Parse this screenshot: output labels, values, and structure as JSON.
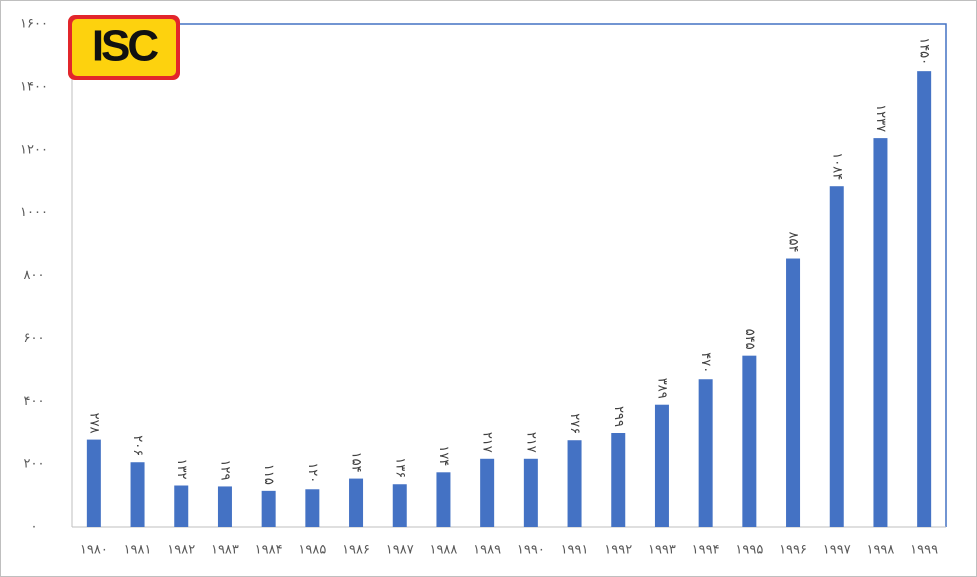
{
  "logo": "ISC",
  "chart_data": {
    "type": "bar",
    "categories": [
      "۱۹۸۰",
      "۱۹۸۱",
      "۱۹۸۲",
      "۱۹۸۳",
      "۱۹۸۴",
      "۱۹۸۵",
      "۱۹۸۶",
      "۱۹۸۷",
      "۱۹۸۸",
      "۱۹۸۹",
      "۱۹۹۰",
      "۱۹۹۱",
      "۱۹۹۲",
      "۱۹۹۳",
      "۱۹۹۴",
      "۱۹۹۵",
      "۱۹۹۶",
      "۱۹۹۷",
      "۱۹۹۸",
      "۱۹۹۹"
    ],
    "values": [
      278,
      206,
      132,
      129,
      115,
      120,
      154,
      136,
      174,
      217,
      217,
      276,
      299,
      389,
      470,
      545,
      854,
      1084,
      1237,
      1450
    ],
    "value_labels": [
      "۲۷۸",
      "۲۰۶",
      "۱۳۲",
      "۱۲۹",
      "۱۱۵",
      "۱۲۰",
      "۱۵۴",
      "۱۳۶",
      "۱۷۴",
      "۲۱۷",
      "۲۱۷",
      "۲۷۶",
      "۲۹۹",
      "۳۸۹",
      "۴۷۰",
      "۵۴۵",
      "۸۵۴",
      "۱۰۸۴",
      "۱۲۳۷",
      "۱۴۵۰"
    ],
    "color": "#4472c4",
    "ylim": [
      0,
      1600
    ],
    "yticks": [
      {
        "value": 0,
        "label": "۰"
      },
      {
        "value": 200,
        "label": "۲۰۰"
      },
      {
        "value": 400,
        "label": "۴۰۰"
      },
      {
        "value": 600,
        "label": "۶۰۰"
      },
      {
        "value": 800,
        "label": "۸۰۰"
      },
      {
        "value": 1000,
        "label": "۱۰۰۰"
      },
      {
        "value": 1200,
        "label": "۱۲۰۰"
      },
      {
        "value": 1400,
        "label": "۱۴۰۰"
      },
      {
        "value": 1600,
        "label": "۱۶۰۰"
      }
    ],
    "grid": false
  }
}
